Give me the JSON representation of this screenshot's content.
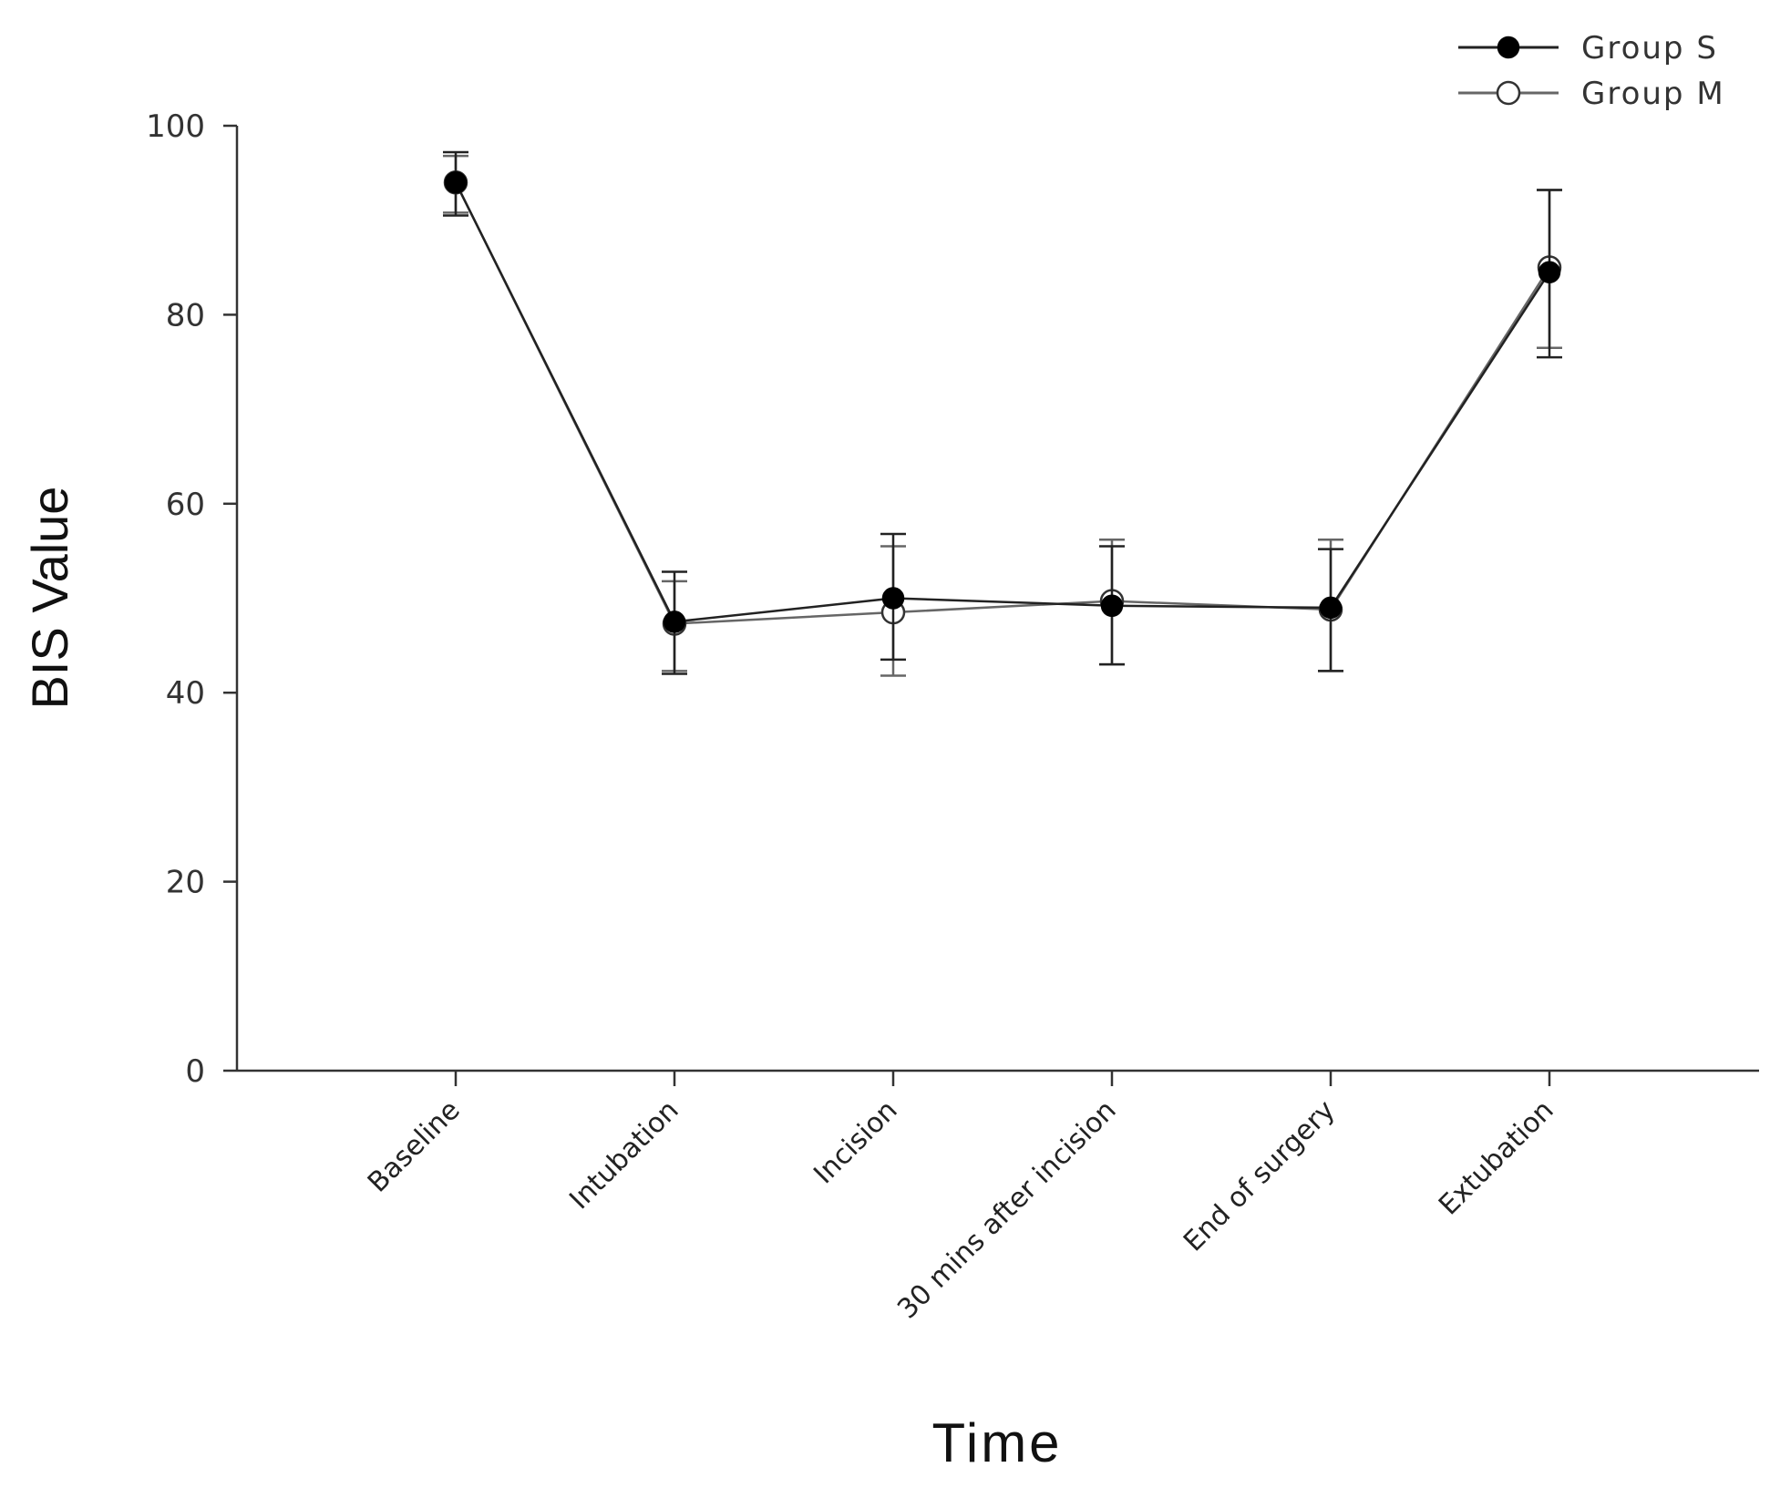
{
  "chart_data": {
    "type": "line",
    "title": "",
    "xlabel": "Time",
    "ylabel": "BIS Value",
    "ylim": [
      0,
      100
    ],
    "yticks": [
      0,
      20,
      40,
      60,
      80,
      100
    ],
    "categories": [
      "Baseline",
      "Intubation",
      "Incision",
      "30 mins after incision",
      "End of surgery",
      "Extubation"
    ],
    "series": [
      {
        "name": "Group S",
        "marker": "filled-circle",
        "line_color": "#222222",
        "values": [
          94,
          47.5,
          50,
          49.2,
          49,
          84.5
        ],
        "err_low": [
          90.5,
          42,
          43.5,
          43,
          42.3,
          75.5
        ],
        "err_high": [
          97.2,
          52.8,
          56.8,
          55.5,
          55.2,
          93.2
        ]
      },
      {
        "name": "Group M",
        "marker": "open-circle",
        "line_color": "#666666",
        "values": [
          94,
          47.3,
          48.5,
          49.7,
          48.8,
          85
        ],
        "err_low": [
          90.8,
          42.3,
          41.8,
          43,
          42.3,
          76.5
        ],
        "err_high": [
          96.8,
          51.8,
          55.5,
          56.2,
          56.2,
          93.2
        ]
      }
    ],
    "legend_position": "top-right"
  }
}
